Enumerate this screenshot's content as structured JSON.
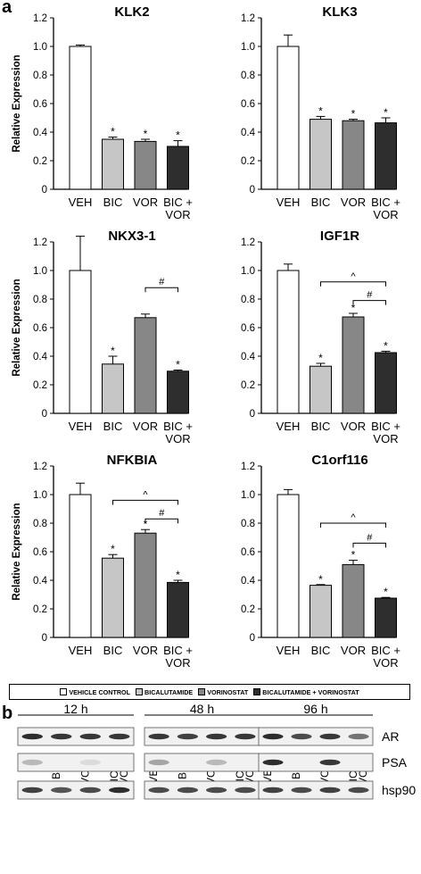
{
  "panel_a": {
    "letter": "a"
  },
  "panel_b": {
    "letter": "b",
    "timepoints": [
      "12 h",
      "48 h",
      "96 h"
    ],
    "lanes": [
      [
        "",
        "BIC",
        "VOR",
        "BIC + VOR"
      ],
      [
        "VEH",
        "BIC",
        "VOR",
        "BIC + VOR"
      ],
      [
        "VEH",
        "BIC",
        "VOR",
        "BIC + VOR"
      ]
    ],
    "proteins": [
      "AR",
      "PSA",
      "hsp90"
    ]
  },
  "legend": {
    "items": [
      {
        "label": "VEHICLE CONTROL",
        "color": "#ffffff"
      },
      {
        "label": "BICALUTAMIDE",
        "color": "#c6c6c6"
      },
      {
        "label": "VORINOSTAT",
        "color": "#878787"
      },
      {
        "label": "BICALUTAMIDE + VORINOSTAT",
        "color": "#2e2e2e"
      }
    ]
  },
  "colors": {
    "veh": "#ffffff",
    "bic": "#c6c6c6",
    "vor": "#878787",
    "bicvor": "#2e2e2e"
  },
  "chart_data": [
    {
      "type": "bar",
      "title": "KLK2",
      "ylabel": "Relative Expression",
      "ylim": [
        0,
        1.2
      ],
      "yticks": [
        "0",
        "0.2",
        "0.4",
        "0.6",
        "0.8",
        "1.0",
        "1.2"
      ],
      "categories": [
        "VEH",
        "BIC",
        "VOR",
        "BIC + VOR"
      ],
      "values": [
        1.0,
        0.35,
        0.335,
        0.3
      ],
      "errors": [
        0.01,
        0.015,
        0.015,
        0.04
      ],
      "stars": [
        "",
        "*",
        "*",
        "*"
      ],
      "brackets": []
    },
    {
      "type": "bar",
      "title": "KLK3",
      "ylabel": "",
      "ylim": [
        0,
        1.2
      ],
      "yticks": [
        "0",
        "0.2",
        "0.4",
        "0.6",
        "0.8",
        "1.0",
        "1.2"
      ],
      "categories": [
        "VEH",
        "BIC",
        "VOR",
        "BIC + VOR"
      ],
      "values": [
        1.0,
        0.49,
        0.48,
        0.465
      ],
      "errors": [
        0.08,
        0.02,
        0.01,
        0.035
      ],
      "stars": [
        "",
        "*",
        "*",
        "*"
      ],
      "brackets": []
    },
    {
      "type": "bar",
      "title": "NKX3-1",
      "ylabel": "Relative Expression",
      "ylim": [
        0,
        1.2
      ],
      "yticks": [
        "0",
        "0.2",
        "0.4",
        "0.6",
        "0.8",
        "1.0",
        "1.2"
      ],
      "categories": [
        "VEH",
        "BIC",
        "VOR",
        "BIC + VOR"
      ],
      "values": [
        1.0,
        0.345,
        0.67,
        0.295
      ],
      "errors": [
        0.24,
        0.055,
        0.025,
        0.008
      ],
      "stars": [
        "",
        "*",
        "",
        "*"
      ],
      "brackets": [
        {
          "from": 2,
          "to": 3,
          "label": "#",
          "y": 0.88
        }
      ]
    },
    {
      "type": "bar",
      "title": "IGF1R",
      "ylabel": "",
      "ylim": [
        0,
        1.2
      ],
      "yticks": [
        "0",
        "0.2",
        "0.4",
        "0.6",
        "0.8",
        "1.0",
        "1.2"
      ],
      "categories": [
        "VEH",
        "BIC",
        "VOR",
        "BIC + VOR"
      ],
      "values": [
        1.0,
        0.33,
        0.675,
        0.425
      ],
      "errors": [
        0.045,
        0.02,
        0.025,
        0.01
      ],
      "stars": [
        "",
        "*",
        "*",
        "*"
      ],
      "brackets": [
        {
          "from": 1,
          "to": 3,
          "label": "^",
          "y": 0.92
        },
        {
          "from": 2,
          "to": 3,
          "label": "#",
          "y": 0.79
        }
      ]
    },
    {
      "type": "bar",
      "title": "NFKBIA",
      "ylabel": "Relative Expression",
      "ylim": [
        0,
        1.2
      ],
      "yticks": [
        "0",
        "0.2",
        "0.4",
        "0.6",
        "0.8",
        "1.0",
        "1.2"
      ],
      "categories": [
        "VEH",
        "BIC",
        "VOR",
        "BIC + VOR"
      ],
      "values": [
        1.0,
        0.555,
        0.73,
        0.385
      ],
      "errors": [
        0.08,
        0.025,
        0.025,
        0.015
      ],
      "stars": [
        "",
        "*",
        "*",
        "*"
      ],
      "brackets": [
        {
          "from": 1,
          "to": 3,
          "label": "^",
          "y": 0.96
        },
        {
          "from": 2,
          "to": 3,
          "label": "#",
          "y": 0.83
        }
      ]
    },
    {
      "type": "bar",
      "title": "C1orf116",
      "ylabel": "",
      "ylim": [
        0,
        1.2
      ],
      "yticks": [
        "0",
        "0.2",
        "0.4",
        "0.6",
        "0.8",
        "1.0",
        "1.2"
      ],
      "categories": [
        "VEH",
        "BIC",
        "VOR",
        "BIC + VOR"
      ],
      "values": [
        1.0,
        0.365,
        0.51,
        0.275
      ],
      "errors": [
        0.035,
        0.005,
        0.03,
        0.005
      ],
      "stars": [
        "",
        "*",
        "*",
        "*"
      ],
      "brackets": [
        {
          "from": 1,
          "to": 3,
          "label": "^",
          "y": 0.8
        },
        {
          "from": 2,
          "to": 3,
          "label": "#",
          "y": 0.66
        }
      ]
    }
  ]
}
